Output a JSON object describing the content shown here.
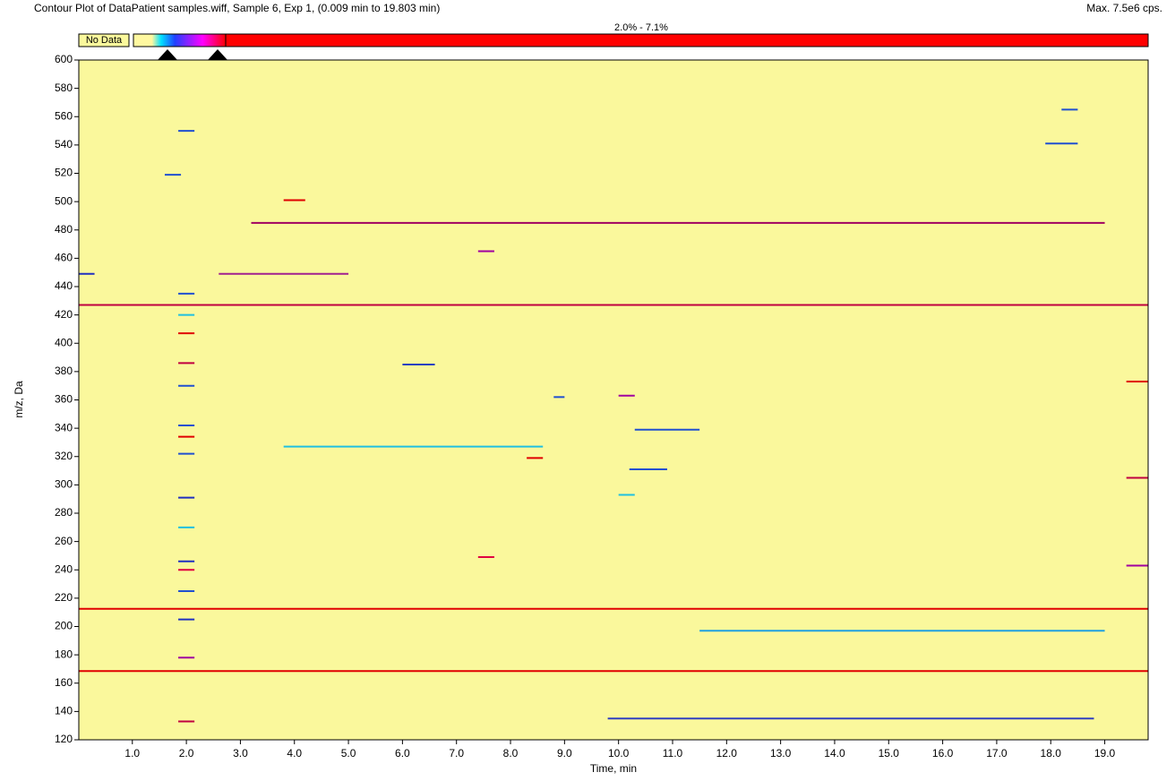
{
  "chart_data": {
    "type": "contour",
    "title": "Contour Plot of DataPatient samples.wiff, Sample 6, Exp 1, (0.009 min to 19.803 min)",
    "max_label": "Max. 7.5e6 cps.",
    "no_data_label": "No Data",
    "range_label": "2.0% - 7.1%",
    "xlabel": "Time, min",
    "ylabel": "m/z, Da",
    "background": "#faf89c",
    "xlim": [
      0.009,
      19.803
    ],
    "ylim": [
      120,
      600
    ],
    "xticks": [
      {
        "value": 1,
        "label": "1.0"
      },
      {
        "value": 2,
        "label": "2.0"
      },
      {
        "value": 3,
        "label": "3.0"
      },
      {
        "value": 4,
        "label": "4.0"
      },
      {
        "value": 5,
        "label": "5.0"
      },
      {
        "value": 6,
        "label": "6.0"
      },
      {
        "value": 7,
        "label": "7.0"
      },
      {
        "value": 8,
        "label": "8.0"
      },
      {
        "value": 9,
        "label": "9.0"
      },
      {
        "value": 10,
        "label": "10.0"
      },
      {
        "value": 11,
        "label": "11.0"
      },
      {
        "value": 12,
        "label": "12.0"
      },
      {
        "value": 13,
        "label": "13.0"
      },
      {
        "value": 14,
        "label": "14.0"
      },
      {
        "value": 15,
        "label": "15.0"
      },
      {
        "value": 16,
        "label": "16.0"
      },
      {
        "value": 17,
        "label": "17.0"
      },
      {
        "value": 18,
        "label": "18.0"
      },
      {
        "value": 19,
        "label": "19.0"
      }
    ],
    "yticks": [
      120,
      140,
      160,
      180,
      200,
      220,
      240,
      260,
      280,
      300,
      320,
      340,
      360,
      380,
      400,
      420,
      440,
      460,
      480,
      500,
      520,
      540,
      560,
      580,
      600
    ],
    "segments": [
      {
        "mz": 168.5,
        "start": 0.009,
        "end": 19.803,
        "color": "#e00000"
      },
      {
        "mz": 212.5,
        "start": 0.009,
        "end": 19.803,
        "color": "#e00000"
      },
      {
        "mz": 427,
        "start": 0.009,
        "end": 19.803,
        "color": "#c00040"
      },
      {
        "mz": 485,
        "start": 3.2,
        "end": 19,
        "color": "#a00060"
      },
      {
        "mz": 449,
        "start": 2.6,
        "end": 5,
        "color": "#a02090"
      },
      {
        "mz": 449,
        "start": 0.009,
        "end": 0.3,
        "color": "#2030c0"
      },
      {
        "mz": 385,
        "start": 6,
        "end": 6.6,
        "color": "#2040c0"
      },
      {
        "mz": 327,
        "start": 3.8,
        "end": 8.6,
        "color": "#20c0e0"
      },
      {
        "mz": 339,
        "start": 10.3,
        "end": 11.5,
        "color": "#2050d0"
      },
      {
        "mz": 311,
        "start": 10.2,
        "end": 10.9,
        "color": "#2050d0"
      },
      {
        "mz": 197,
        "start": 11.5,
        "end": 19,
        "color": "#20a0e0"
      },
      {
        "mz": 135,
        "start": 9.8,
        "end": 18.8,
        "color": "#3040c0"
      },
      {
        "mz": 249,
        "start": 7.4,
        "end": 7.7,
        "color": "#e00040"
      },
      {
        "mz": 465,
        "start": 7.4,
        "end": 7.7,
        "color": "#a000a0"
      },
      {
        "mz": 501,
        "start": 3.8,
        "end": 4.2,
        "color": "#e00000"
      },
      {
        "mz": 541,
        "start": 17.9,
        "end": 18.5,
        "color": "#2050d0"
      },
      {
        "mz": 565,
        "start": 18.2,
        "end": 18.5,
        "color": "#2050d0"
      },
      {
        "mz": 519,
        "start": 1.6,
        "end": 1.9,
        "color": "#2050d0"
      },
      {
        "mz": 305,
        "start": 19.4,
        "end": 19.8,
        "color": "#c00040"
      },
      {
        "mz": 243,
        "start": 19.4,
        "end": 19.8,
        "color": "#a000a0"
      },
      {
        "mz": 373,
        "start": 19.4,
        "end": 19.8,
        "color": "#e00000"
      },
      {
        "mz": 362,
        "start": 8.8,
        "end": 9,
        "color": "#2050d0"
      },
      {
        "mz": 363,
        "start": 10,
        "end": 10.3,
        "color": "#a000a0"
      },
      {
        "mz": 319,
        "start": 8.3,
        "end": 8.6,
        "color": "#e00000"
      },
      {
        "mz": 293,
        "start": 10,
        "end": 10.3,
        "color": "#20c0e0"
      },
      {
        "mz": 550,
        "start": 1.85,
        "end": 2.15,
        "color": "#2050d0"
      },
      {
        "mz": 435,
        "start": 1.85,
        "end": 2.15,
        "color": "#2050d0"
      },
      {
        "mz": 420,
        "start": 1.85,
        "end": 2.15,
        "color": "#20c0e0"
      },
      {
        "mz": 407,
        "start": 1.85,
        "end": 2.15,
        "color": "#e00000"
      },
      {
        "mz": 386,
        "start": 1.85,
        "end": 2.15,
        "color": "#c00040"
      },
      {
        "mz": 370,
        "start": 1.85,
        "end": 2.15,
        "color": "#2050d0"
      },
      {
        "mz": 342,
        "start": 1.85,
        "end": 2.15,
        "color": "#2050d0"
      },
      {
        "mz": 334,
        "start": 1.85,
        "end": 2.15,
        "color": "#e00000"
      },
      {
        "mz": 322,
        "start": 1.85,
        "end": 2.15,
        "color": "#2050d0"
      },
      {
        "mz": 291,
        "start": 1.85,
        "end": 2.15,
        "color": "#2030c0"
      },
      {
        "mz": 270,
        "start": 1.85,
        "end": 2.15,
        "color": "#20c0e0"
      },
      {
        "mz": 246,
        "start": 1.85,
        "end": 2.15,
        "color": "#2030c0"
      },
      {
        "mz": 240,
        "start": 1.85,
        "end": 2.15,
        "color": "#e00040"
      },
      {
        "mz": 225,
        "start": 1.85,
        "end": 2.15,
        "color": "#2050d0"
      },
      {
        "mz": 205,
        "start": 1.85,
        "end": 2.15,
        "color": "#2030c0"
      },
      {
        "mz": 178,
        "start": 1.85,
        "end": 2.15,
        "color": "#a000a0"
      },
      {
        "mz": 133,
        "start": 1.85,
        "end": 2.15,
        "color": "#c00040"
      }
    ]
  }
}
